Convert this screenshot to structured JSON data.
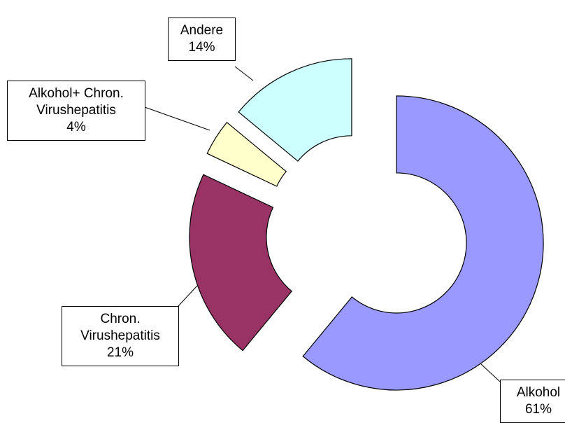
{
  "chart_data": {
    "type": "donut",
    "categories": [
      "Alkohol",
      "Chron. Virushepatitis",
      "Alkohol+ Chron. Virushepatitis",
      "Andere"
    ],
    "values": [
      61,
      21,
      4,
      14
    ],
    "value_labels": [
      "61%",
      "21%",
      "4%",
      "14%"
    ],
    "colors": [
      "#9999ff",
      "#993366",
      "#ffffcc",
      "#ccffff"
    ]
  }
}
